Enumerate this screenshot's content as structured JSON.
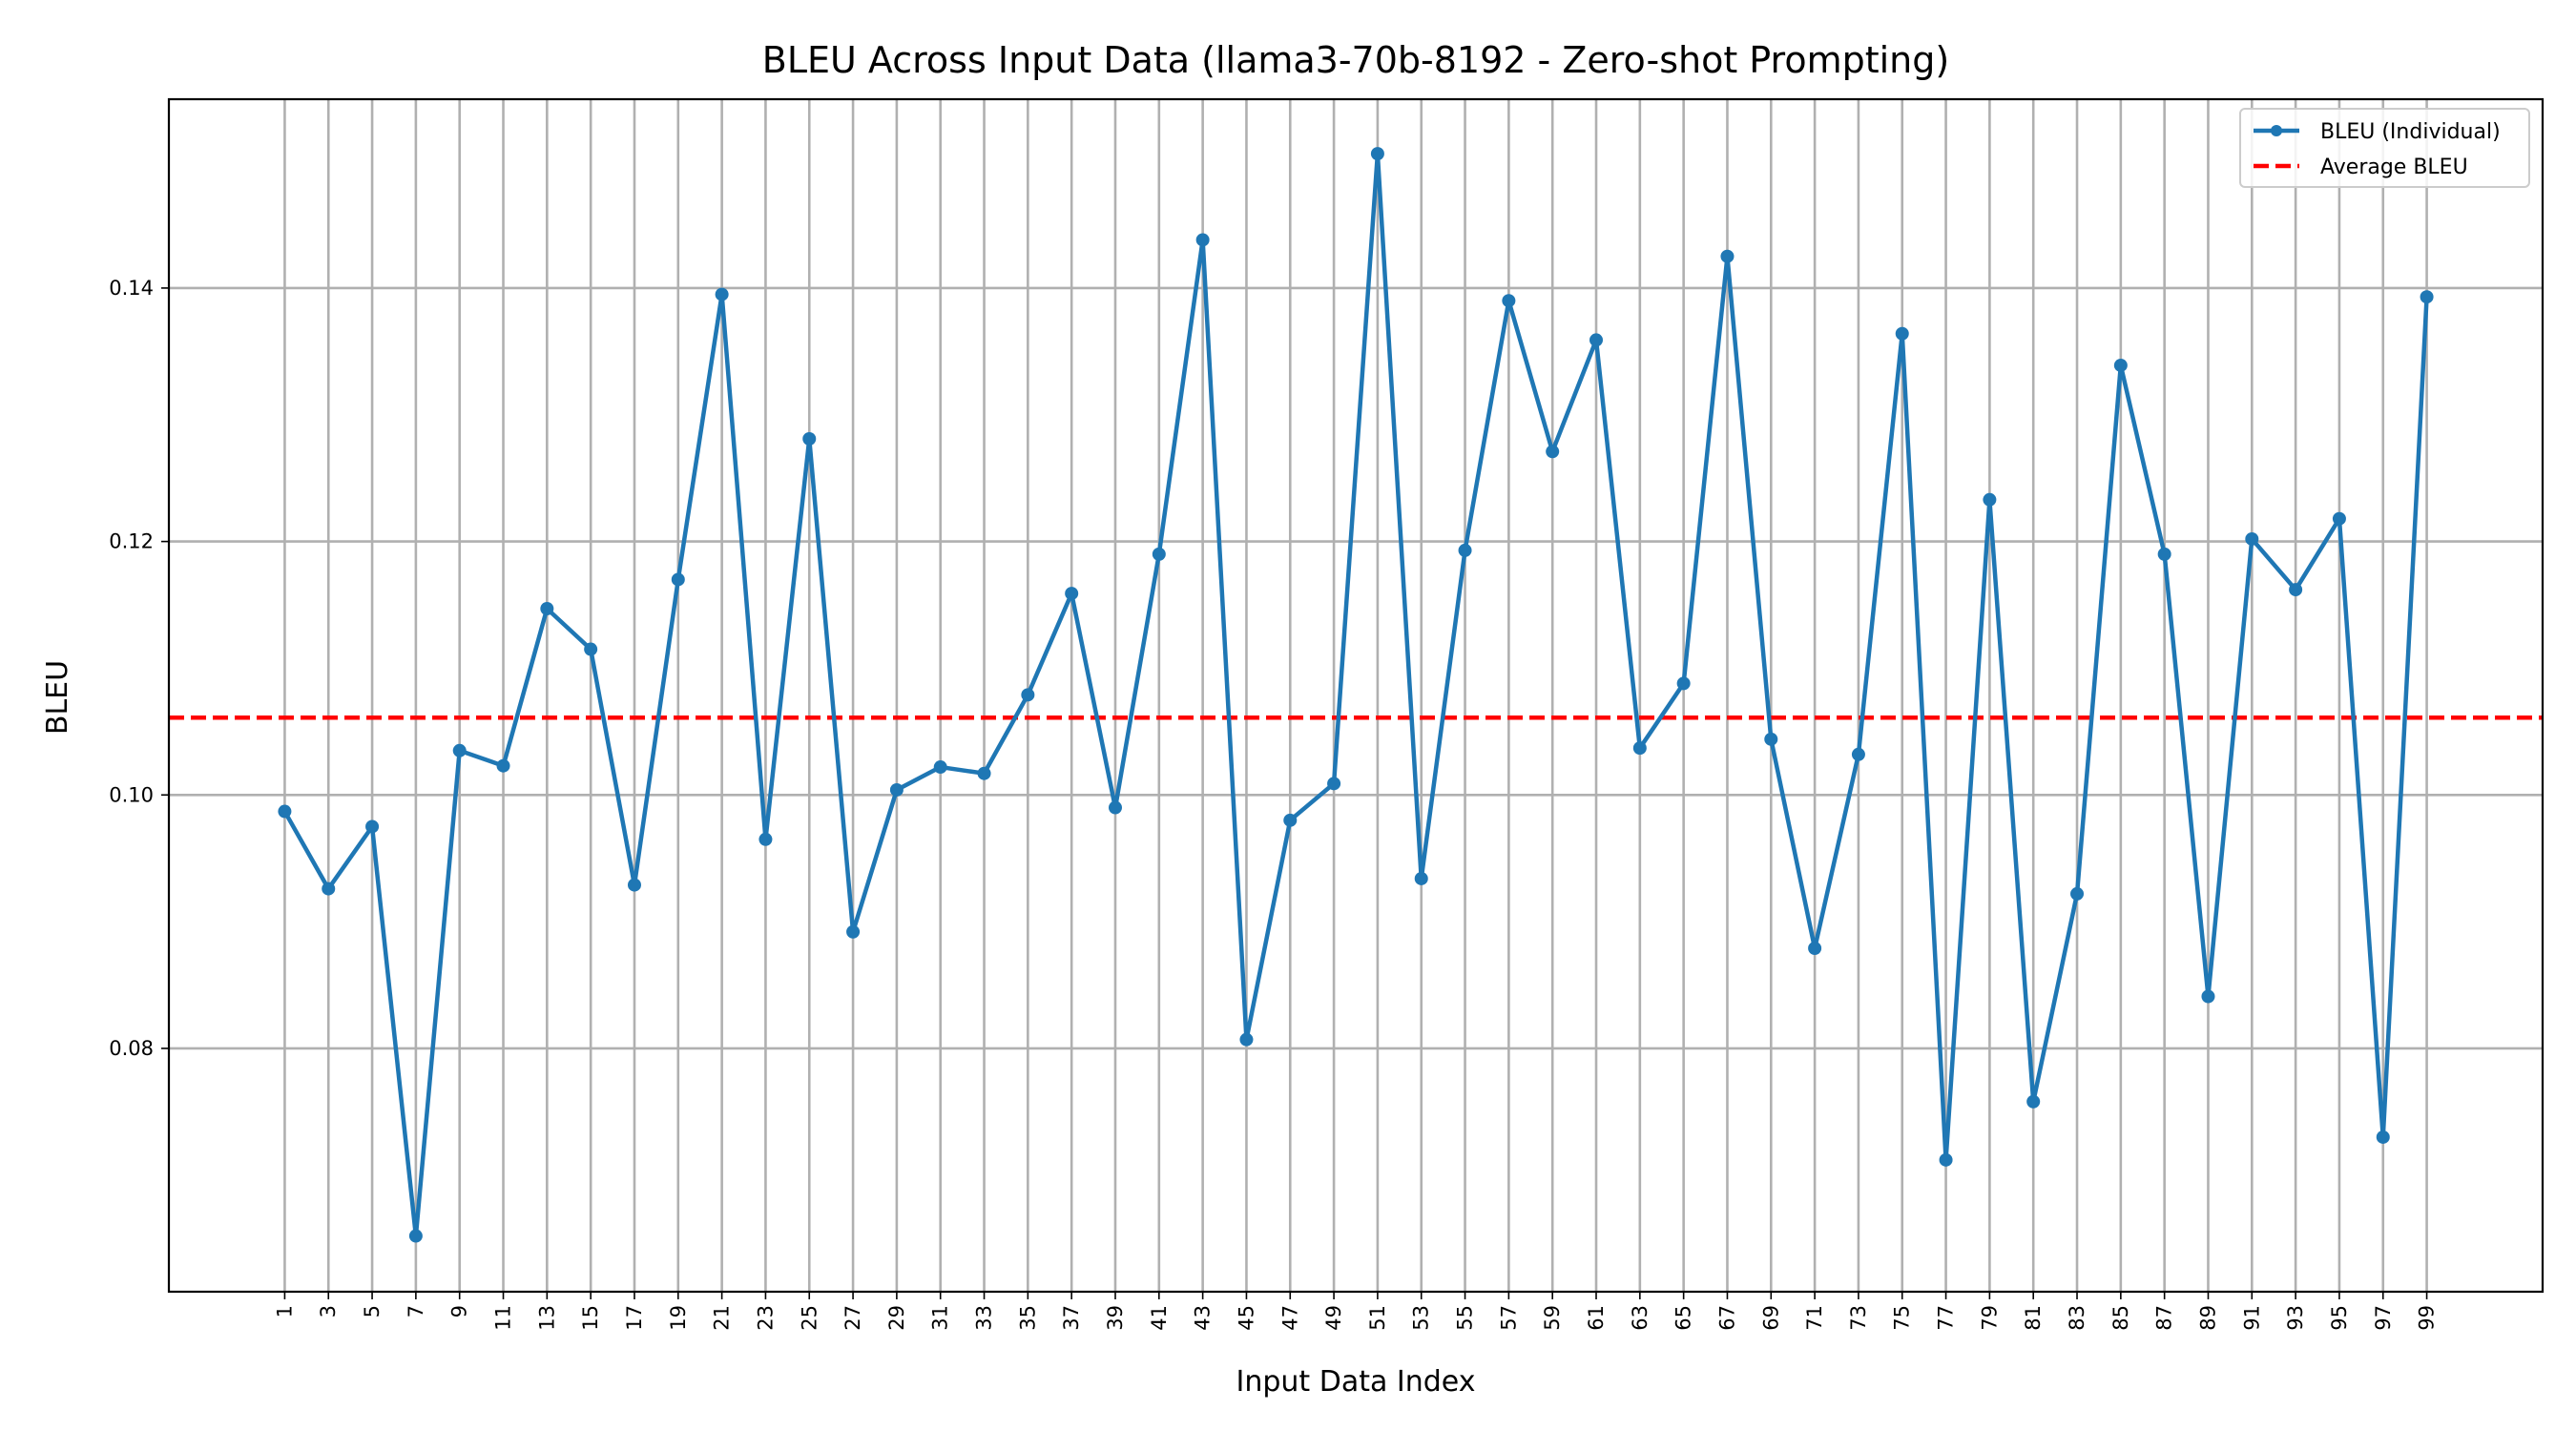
{
  "chart_data": {
    "type": "line",
    "title": "BLEU Across Input Data (llama3-70b-8192 - Zero-shot Prompting)",
    "xlabel": "Input Data Index",
    "ylabel": "BLEU",
    "x": [
      1,
      3,
      5,
      7,
      9,
      11,
      13,
      15,
      17,
      19,
      21,
      23,
      25,
      27,
      29,
      31,
      33,
      35,
      37,
      39,
      41,
      43,
      45,
      47,
      49,
      51,
      53,
      55,
      57,
      59,
      61,
      63,
      65,
      67,
      69,
      71,
      73,
      75,
      77,
      79,
      81,
      83,
      85,
      87,
      89,
      91,
      93,
      95,
      97,
      99
    ],
    "xticks": [
      "1",
      "3",
      "5",
      "7",
      "9",
      "11",
      "13",
      "15",
      "17",
      "19",
      "21",
      "23",
      "25",
      "27",
      "29",
      "31",
      "33",
      "35",
      "37",
      "39",
      "41",
      "43",
      "45",
      "47",
      "49",
      "51",
      "53",
      "55",
      "57",
      "59",
      "61",
      "63",
      "65",
      "67",
      "69",
      "71",
      "73",
      "75",
      "77",
      "79",
      "81",
      "83",
      "85",
      "87",
      "89",
      "91",
      "93",
      "95",
      "97",
      "99"
    ],
    "yticks": [
      0.08,
      0.1,
      0.12,
      0.14
    ],
    "ytick_labels": [
      "0.08",
      "0.10",
      "0.12",
      "0.14"
    ],
    "xlim": [
      -4.3,
      104.3
    ],
    "ylim": [
      0.0608,
      0.1549
    ],
    "grid": true,
    "legend_position": "top-right",
    "series": [
      {
        "name": "BLEU (Individual)",
        "color": "#1f77b4",
        "style": "solid-with-markers",
        "values": [
          0.0987,
          0.0926,
          0.0975,
          0.0652,
          0.1035,
          0.1023,
          0.1147,
          0.1115,
          0.0929,
          0.117,
          0.1395,
          0.0965,
          0.1281,
          0.0892,
          0.1004,
          0.1022,
          0.1017,
          0.1079,
          0.1159,
          0.099,
          0.119,
          0.1438,
          0.0807,
          0.098,
          0.1009,
          0.1506,
          0.0934,
          0.1193,
          0.139,
          0.1271,
          0.1359,
          0.1037,
          0.1088,
          0.1425,
          0.1044,
          0.0879,
          0.1032,
          0.1364,
          0.0712,
          0.1233,
          0.0758,
          0.0922,
          0.1339,
          0.119,
          0.0841,
          0.1202,
          0.1162,
          0.1218,
          0.073,
          0.1393
        ]
      },
      {
        "name": "Average BLEU",
        "color": "#ff0000",
        "style": "dashed",
        "value": 0.1061
      }
    ]
  }
}
